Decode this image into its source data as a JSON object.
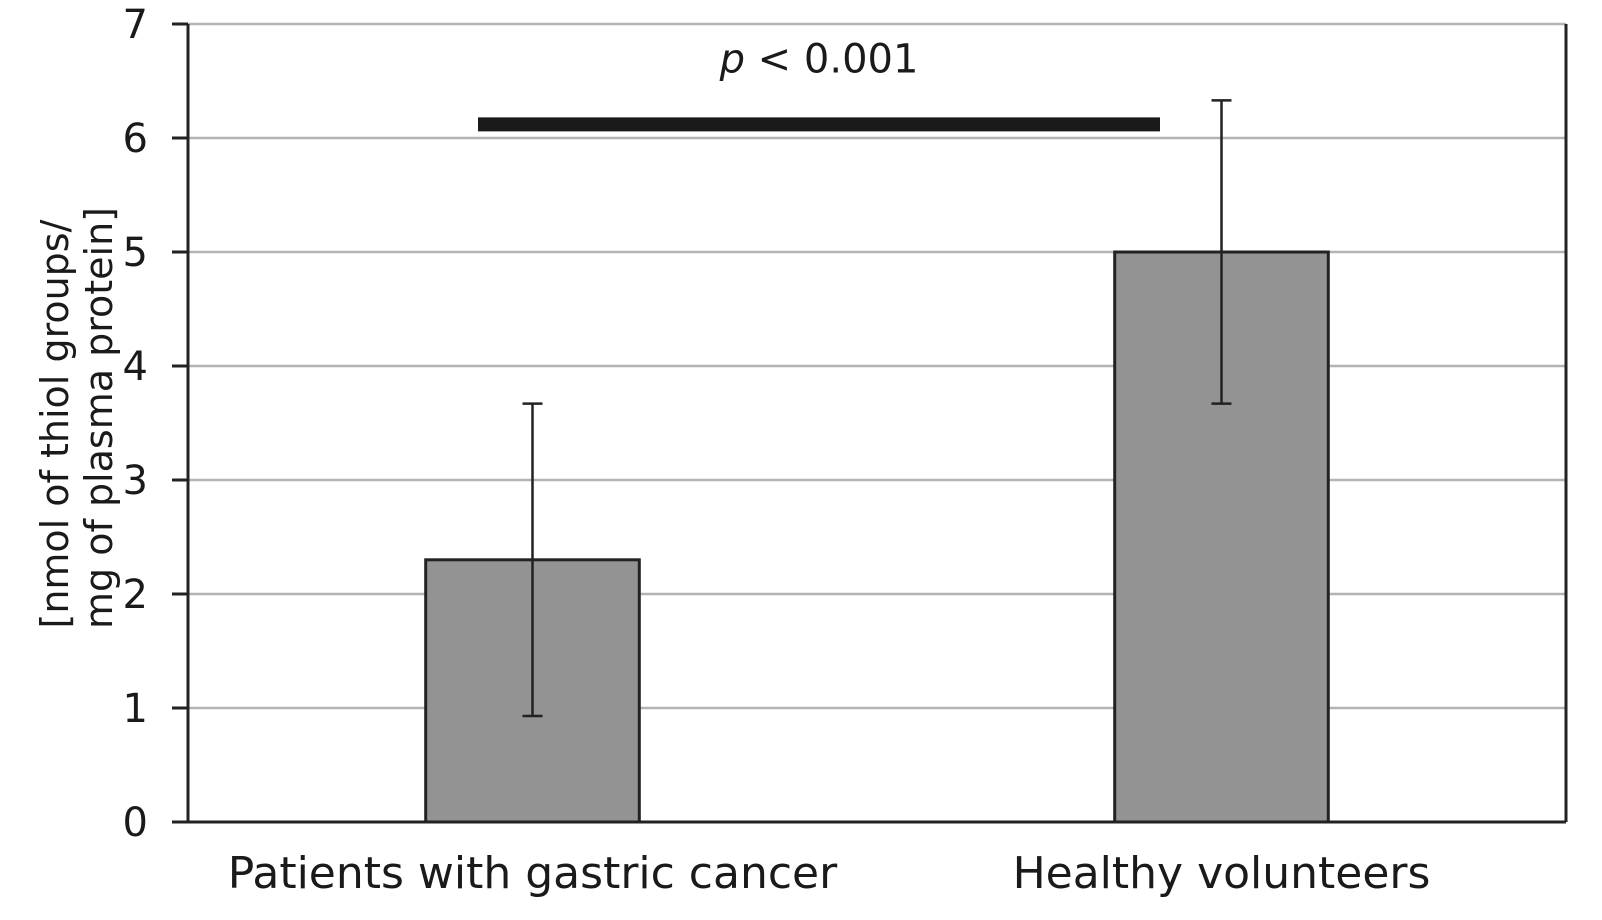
{
  "chart_data": {
    "type": "bar",
    "categories": [
      "Patients with gastric cancer",
      "Healthy volunteers"
    ],
    "values": [
      2.3,
      5.0
    ],
    "error": [
      1.37,
      1.33
    ],
    "ylabel_lines": [
      "[nmol of thiol groups/",
      "mg of plasma protein]"
    ],
    "ylim": [
      0,
      7
    ],
    "yticks": [
      "0",
      "1",
      "2",
      "3",
      "4",
      "5",
      "6",
      "7"
    ],
    "grid": true,
    "annotation": {
      "p_symbol": "p",
      "text": " < 0.001",
      "bracket_y": 6.12
    },
    "colors": {
      "bar": "#939393",
      "bar_edge": "#222222",
      "grid": "#b3b3b3",
      "axis": "#222222",
      "bracket": "#1a1a1a"
    }
  }
}
